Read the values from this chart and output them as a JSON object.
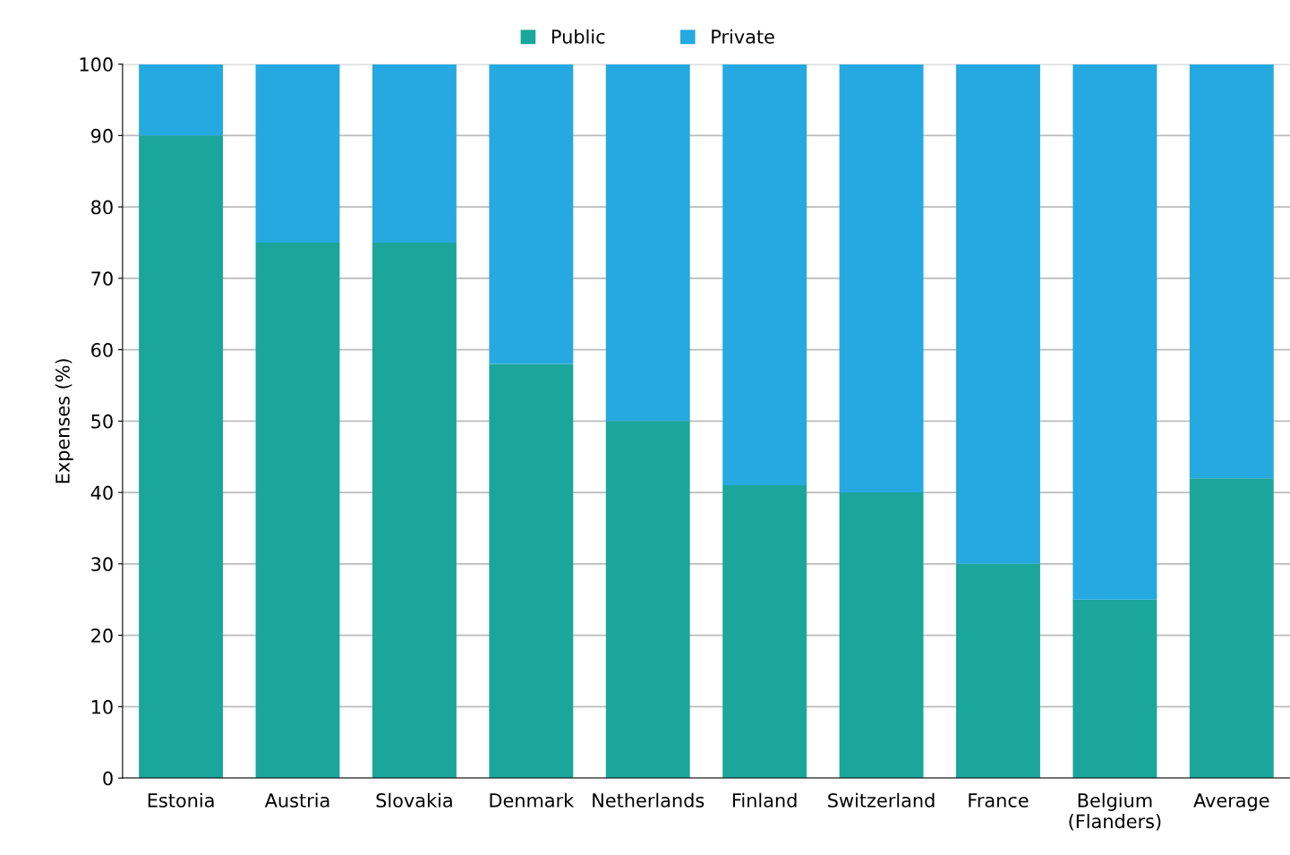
{
  "chart_data": {
    "type": "bar",
    "stacked": true,
    "ylabel": "Expenses (%)",
    "categories": [
      "Estonia",
      "Austria",
      "Slovakia",
      "Denmark",
      "Netherlands",
      "Finland",
      "Switzerland",
      "France",
      "Belgium\n(Flanders)",
      "Average"
    ],
    "series": [
      {
        "name": "Public",
        "color": "#1aa69a",
        "values": [
          90,
          75,
          75,
          58,
          50,
          41,
          40,
          30,
          25,
          42
        ]
      },
      {
        "name": "Private",
        "color": "#25a9e0",
        "values": [
          10,
          25,
          25,
          42,
          50,
          59,
          60,
          70,
          75,
          58
        ]
      }
    ],
    "ylim": [
      0,
      100
    ],
    "yticks": [
      0,
      10,
      20,
      30,
      40,
      50,
      60,
      70,
      80,
      90,
      100
    ],
    "grid": "y",
    "legend": "top"
  }
}
